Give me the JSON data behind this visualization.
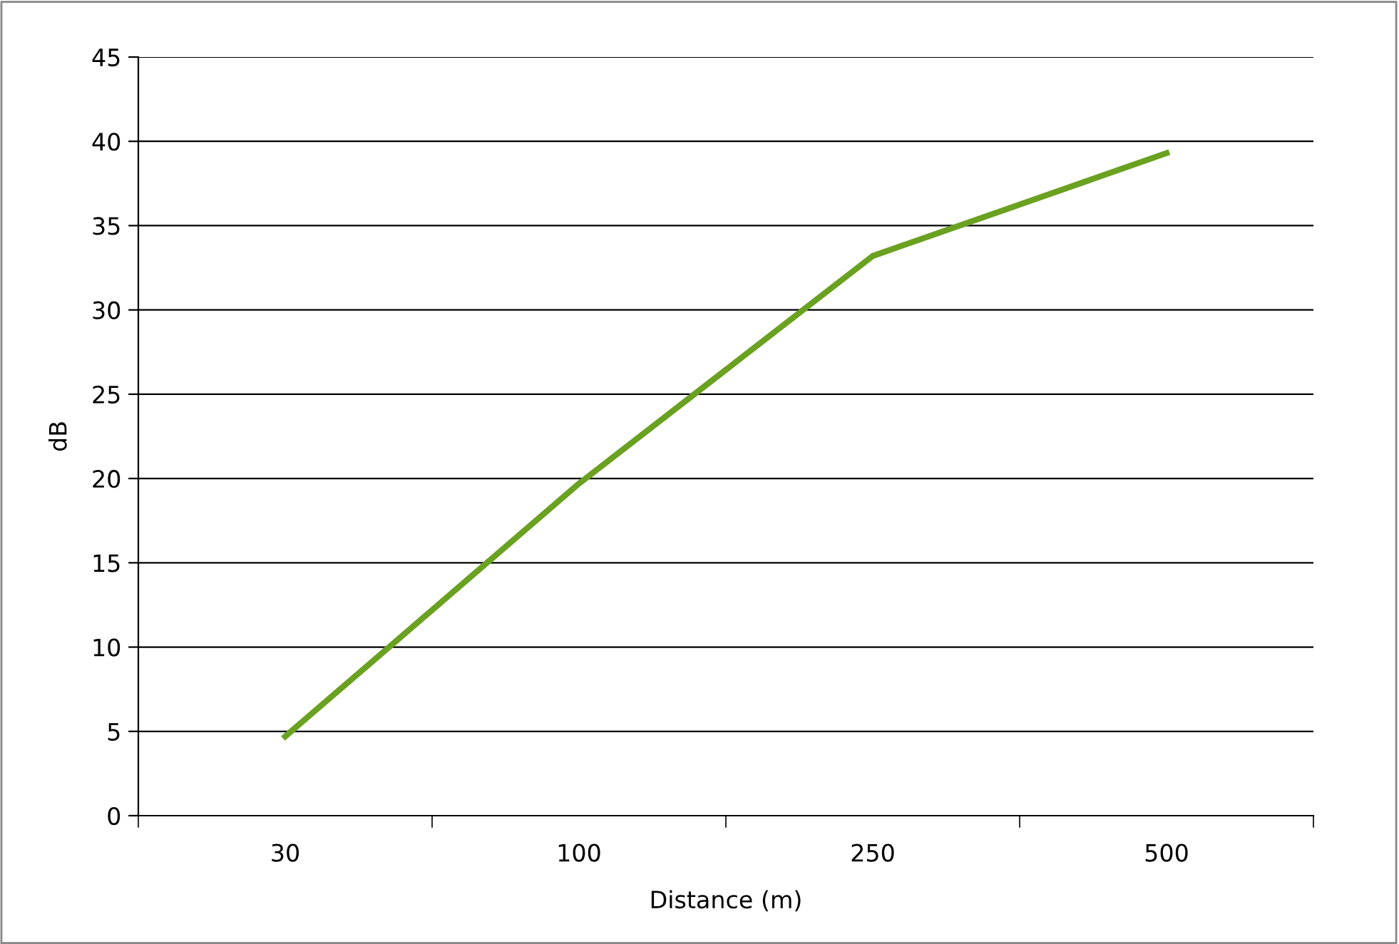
{
  "chart_data": {
    "type": "line",
    "xlabel": "Distance (m)",
    "ylabel": "dB",
    "categories": [
      "30",
      "100",
      "250",
      "500"
    ],
    "series": [
      {
        "color": "#6aa121",
        "values": [
          4.7,
          19.7,
          33.2,
          39.3
        ]
      }
    ],
    "ylim": [
      0,
      45
    ],
    "yticks": [
      0,
      5,
      10,
      15,
      20,
      25,
      30,
      35,
      40,
      45
    ],
    "grid": "y",
    "legend": false,
    "marker": "none",
    "line_style": "solid"
  }
}
